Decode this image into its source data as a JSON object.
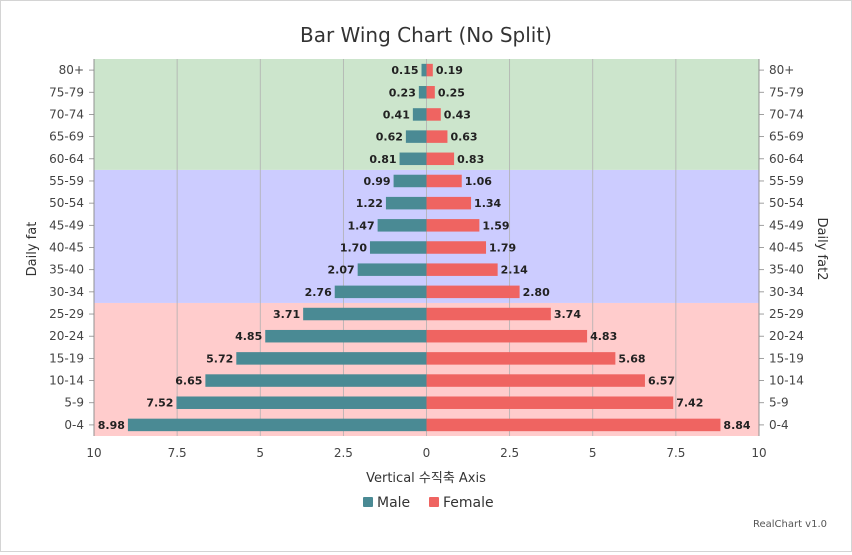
{
  "chart_data": {
    "type": "bar",
    "orientation": "horizontal",
    "layout": "butterfly",
    "title": "Bar Wing Chart (No Split)",
    "xlabel": "Vertical 수직축 Axis",
    "ylabel_left": "Daily fat",
    "ylabel_right": "Daily fat2",
    "xlim": [
      -10,
      10
    ],
    "x_ticks": [
      "10",
      "7.5",
      "5",
      "2.5",
      "0",
      "2.5",
      "5",
      "7.5",
      "10"
    ],
    "categories": [
      "0-4",
      "5-9",
      "10-14",
      "15-19",
      "20-24",
      "25-29",
      "30-34",
      "35-40",
      "40-45",
      "45-49",
      "50-54",
      "55-59",
      "60-64",
      "65-69",
      "70-74",
      "75-79",
      "80+"
    ],
    "series": [
      {
        "name": "Male",
        "side": "left",
        "color": "#4a8a94",
        "values": [
          8.98,
          7.52,
          6.65,
          5.72,
          4.85,
          3.71,
          2.76,
          2.07,
          1.7,
          1.47,
          1.22,
          0.99,
          0.81,
          0.62,
          0.41,
          0.23,
          0.15
        ],
        "labels": [
          "8.98",
          "7.52",
          "6.65",
          "5.72",
          "4.85",
          "3.71",
          "2.76",
          "2.07",
          "1.70",
          "1.47",
          "1.22",
          "0.99",
          "0.81",
          "0.62",
          "0.41",
          "0.23",
          "0.15"
        ]
      },
      {
        "name": "Female",
        "side": "right",
        "color": "#ef6461",
        "values": [
          8.84,
          7.42,
          6.57,
          5.68,
          4.83,
          3.74,
          2.8,
          2.14,
          1.79,
          1.59,
          1.34,
          1.06,
          0.83,
          0.63,
          0.43,
          0.25,
          0.19
        ],
        "labels": [
          "8.84",
          "7.42",
          "6.57",
          "5.68",
          "4.83",
          "3.74",
          "2.80",
          "2.14",
          "1.79",
          "1.59",
          "1.34",
          "1.06",
          "0.83",
          "0.63",
          "0.43",
          "0.25",
          "0.19"
        ]
      }
    ],
    "bands": [
      {
        "from": "0-4",
        "to": "25-29",
        "color": "#ffcccc"
      },
      {
        "from": "30-34",
        "to": "55-59",
        "color": "#ccccff"
      },
      {
        "from": "60-64",
        "to": "80+",
        "color": "#cce5cc"
      }
    ],
    "grid": true,
    "legend_position": "bottom"
  },
  "credit": "RealChart v1.0"
}
